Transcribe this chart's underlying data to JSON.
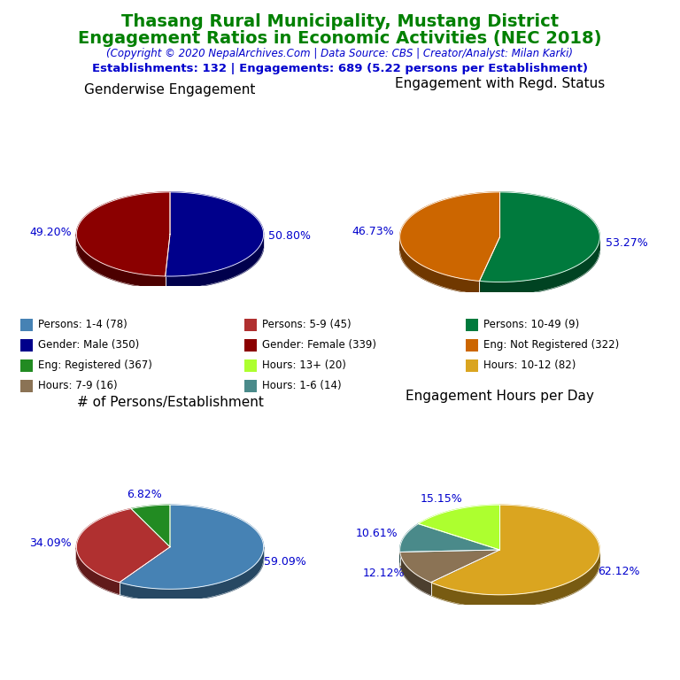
{
  "title_line1": "Thasang Rural Municipality, Mustang District",
  "title_line2": "Engagement Ratios in Economic Activities (NEC 2018)",
  "subtitle": "(Copyright © 2020 NepalArchives.Com | Data Source: CBS | Creator/Analyst: Milan Karki)",
  "establishments_line": "Establishments: 132 | Engagements: 689 (5.22 persons per Establishment)",
  "title_color": "#008000",
  "subtitle_color": "#0000CD",
  "estab_color": "#0000CD",
  "chart1_title": "Genderwise Engagement",
  "chart1_values": [
    350,
    339
  ],
  "chart1_colors": [
    "#00008B",
    "#8B0000"
  ],
  "chart1_labels": [
    "50.80%",
    "49.20%"
  ],
  "chart2_title": "Engagement with Regd. Status",
  "chart2_values": [
    367,
    322
  ],
  "chart2_colors": [
    "#007A3D",
    "#CC6600"
  ],
  "chart2_labels": [
    "53.27%",
    "46.73%"
  ],
  "chart3_title": "# of Persons/Establishment",
  "chart3_values": [
    78,
    45,
    9
  ],
  "chart3_colors": [
    "#4682B4",
    "#B03030",
    "#228B22"
  ],
  "chart3_labels": [
    "59.09%",
    "34.09%",
    "6.82%"
  ],
  "chart4_title": "Engagement Hours per Day",
  "chart4_values": [
    82,
    16,
    14,
    20
  ],
  "chart4_colors": [
    "#DAA520",
    "#8B7355",
    "#4A8A8A",
    "#ADFF2F"
  ],
  "chart4_labels": [
    "62.12%",
    "12.12%",
    "10.61%",
    "15.15%"
  ],
  "legend_cols": [
    [
      {
        "label": "Persons: 1-4 (78)",
        "color": "#4682B4"
      },
      {
        "label": "Gender: Male (350)",
        "color": "#00008B"
      },
      {
        "label": "Eng: Registered (367)",
        "color": "#228B22"
      },
      {
        "label": "Hours: 7-9 (16)",
        "color": "#8B7355"
      }
    ],
    [
      {
        "label": "Persons: 5-9 (45)",
        "color": "#B03030"
      },
      {
        "label": "Gender: Female (339)",
        "color": "#8B0000"
      },
      {
        "label": "Hours: 13+ (20)",
        "color": "#ADFF2F"
      },
      {
        "label": "Hours: 1-6 (14)",
        "color": "#4A8A8A"
      }
    ],
    [
      {
        "label": "Persons: 10-49 (9)",
        "color": "#007A3D"
      },
      {
        "label": "Eng: Not Registered (322)",
        "color": "#CC6600"
      },
      {
        "label": "Hours: 10-12 (82)",
        "color": "#DAA520"
      }
    ]
  ],
  "background_color": "#FFFFFF",
  "label_color": "#0000CD"
}
